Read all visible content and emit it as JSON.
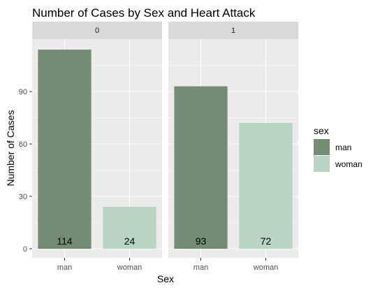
{
  "chart_data": {
    "type": "bar",
    "title": "Number of Cases by Sex and Heart Attack",
    "xlabel": "Sex",
    "ylabel": "Number of Cases",
    "categories": [
      "man",
      "woman"
    ],
    "ylim": [
      0,
      120
    ],
    "yticks": [
      0,
      30,
      60,
      90
    ],
    "grid": true,
    "facets": [
      {
        "label": "0",
        "values": [
          114,
          24
        ]
      },
      {
        "label": "1",
        "values": [
          93,
          72
        ]
      }
    ],
    "legend": {
      "title": "sex",
      "placement": "right",
      "entries": [
        "man",
        "woman"
      ]
    },
    "colors": {
      "man": "#738c73",
      "woman": "#bad4c3",
      "panel": "#ebebeb",
      "strip": "#d9d9d9",
      "grid": "#ffffff"
    }
  }
}
